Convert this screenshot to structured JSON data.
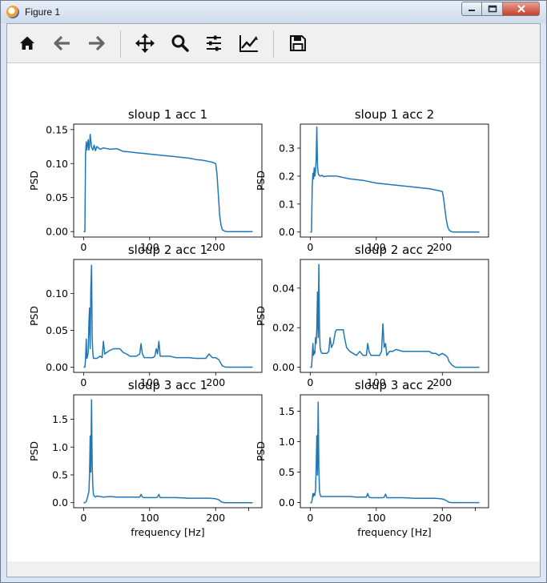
{
  "window": {
    "title": "Figure 1"
  },
  "toolbar": {
    "buttons": [
      {
        "name": "home-button",
        "icon": "home-icon"
      },
      {
        "name": "back-button",
        "icon": "arrow-left-icon"
      },
      {
        "name": "forward-button",
        "icon": "arrow-right-icon"
      },
      {
        "name": "pan-button",
        "icon": "move-icon"
      },
      {
        "name": "zoom-button",
        "icon": "magnifier-icon"
      },
      {
        "name": "configure-subplots-button",
        "icon": "sliders-icon"
      },
      {
        "name": "edit-axis-button",
        "icon": "line-chart-icon"
      },
      {
        "name": "save-button",
        "icon": "floppy-disk-icon"
      }
    ]
  },
  "colors": {
    "series": "#1f77b4"
  },
  "chart_data": [
    {
      "type": "line",
      "title": "sloup 1 acc 1",
      "xlabel": "",
      "ylabel": "PSD",
      "xlim": [
        -15,
        270
      ],
      "ylim": [
        -0.008,
        0.158
      ],
      "xticks": [
        {
          "v": 0,
          "l": "0"
        },
        {
          "v": 100,
          "l": "100"
        },
        {
          "v": 200,
          "l": "200"
        }
      ],
      "yticks": [
        {
          "v": 0,
          "l": "0.00"
        },
        {
          "v": 0.05,
          "l": "0.05"
        },
        {
          "v": 0.1,
          "l": "0.10"
        },
        {
          "v": 0.15,
          "l": "0.15"
        }
      ],
      "x": [
        0,
        2,
        3,
        4,
        5,
        6,
        7,
        8,
        9,
        10,
        12,
        14,
        16,
        18,
        20,
        25,
        30,
        40,
        50,
        60,
        70,
        80,
        90,
        100,
        110,
        120,
        130,
        140,
        150,
        160,
        170,
        180,
        190,
        195,
        200,
        202,
        204,
        206,
        208,
        210,
        213,
        216,
        220,
        230,
        240,
        256
      ],
      "y": [
        0,
        0,
        0.113,
        0.132,
        0.12,
        0.128,
        0.135,
        0.12,
        0.126,
        0.143,
        0.124,
        0.12,
        0.127,
        0.119,
        0.125,
        0.121,
        0.123,
        0.121,
        0.122,
        0.118,
        0.117,
        0.116,
        0.115,
        0.114,
        0.113,
        0.112,
        0.111,
        0.11,
        0.109,
        0.108,
        0.106,
        0.105,
        0.103,
        0.102,
        0.1,
        0.085,
        0.055,
        0.025,
        0.01,
        0.003,
        0.001,
        0,
        0,
        0,
        0,
        0
      ]
    },
    {
      "type": "line",
      "title": "sloup 1 acc 2",
      "xlabel": "",
      "ylabel": "PSD",
      "xlim": [
        -15,
        270
      ],
      "ylim": [
        -0.018,
        0.386
      ],
      "xticks": [
        {
          "v": 0,
          "l": "0"
        },
        {
          "v": 100,
          "l": "100"
        },
        {
          "v": 200,
          "l": "200"
        }
      ],
      "yticks": [
        {
          "v": 0,
          "l": "0.0"
        },
        {
          "v": 0.1,
          "l": "0.1"
        },
        {
          "v": 0.2,
          "l": "0.2"
        },
        {
          "v": 0.3,
          "l": "0.3"
        }
      ],
      "x": [
        0,
        2,
        3,
        4,
        5,
        6,
        7,
        8,
        9,
        10,
        11,
        12,
        13,
        15,
        18,
        20,
        25,
        30,
        40,
        50,
        60,
        80,
        100,
        120,
        140,
        160,
        180,
        195,
        200,
        202,
        204,
        206,
        208,
        210,
        213,
        216,
        220,
        230,
        240,
        256
      ],
      "y": [
        0,
        0,
        0.16,
        0.21,
        0.19,
        0.23,
        0.2,
        0.22,
        0.26,
        0.375,
        0.24,
        0.21,
        0.205,
        0.2,
        0.203,
        0.198,
        0.2,
        0.2,
        0.2,
        0.195,
        0.19,
        0.185,
        0.175,
        0.17,
        0.165,
        0.16,
        0.155,
        0.148,
        0.145,
        0.12,
        0.08,
        0.045,
        0.02,
        0.008,
        0.002,
        0,
        0,
        0,
        0,
        0
      ]
    },
    {
      "type": "line",
      "title": "sloup 2 acc 1",
      "xlabel": "",
      "ylabel": "PSD",
      "xlim": [
        -15,
        270
      ],
      "ylim": [
        -0.007,
        0.146
      ],
      "xticks": [
        {
          "v": 0,
          "l": "0"
        },
        {
          "v": 100,
          "l": "100"
        },
        {
          "v": 200,
          "l": "200"
        }
      ],
      "yticks": [
        {
          "v": 0,
          "l": "0.00"
        },
        {
          "v": 0.05,
          "l": "0.05"
        },
        {
          "v": 0.1,
          "l": "0.10"
        }
      ],
      "x": [
        0,
        2,
        3,
        4,
        5,
        6,
        7,
        8,
        9,
        10,
        11,
        12,
        13,
        14,
        15,
        17,
        20,
        25,
        28,
        30,
        32,
        35,
        40,
        45,
        50,
        55,
        60,
        65,
        70,
        75,
        80,
        85,
        87,
        89,
        92,
        95,
        100,
        105,
        108,
        110,
        112,
        114,
        116,
        120,
        130,
        140,
        150,
        160,
        170,
        180,
        185,
        190,
        195,
        200,
        205,
        208,
        210,
        215,
        220,
        230,
        240,
        256
      ],
      "y": [
        0,
        0,
        0.01,
        0.038,
        0.012,
        0.015,
        0.02,
        0.06,
        0.08,
        0.025,
        0.105,
        0.138,
        0.04,
        0.02,
        0.012,
        0.012,
        0.012,
        0.015,
        0.013,
        0.035,
        0.018,
        0.02,
        0.023,
        0.025,
        0.025,
        0.025,
        0.02,
        0.018,
        0.015,
        0.015,
        0.015,
        0.018,
        0.032,
        0.018,
        0.013,
        0.013,
        0.013,
        0.013,
        0.015,
        0.025,
        0.018,
        0.035,
        0.015,
        0.015,
        0.015,
        0.013,
        0.013,
        0.013,
        0.012,
        0.012,
        0.012,
        0.018,
        0.013,
        0.013,
        0.01,
        0.005,
        0.002,
        0,
        0,
        0,
        0,
        0
      ]
    },
    {
      "type": "line",
      "title": "sloup 2 acc 2",
      "xlabel": "",
      "ylabel": "PSD",
      "xlim": [
        -15,
        270
      ],
      "ylim": [
        -0.0026,
        0.0545
      ],
      "xticks": [
        {
          "v": 0,
          "l": "0"
        },
        {
          "v": 100,
          "l": "100"
        },
        {
          "v": 200,
          "l": "200"
        }
      ],
      "yticks": [
        {
          "v": 0,
          "l": "0.00"
        },
        {
          "v": 0.02,
          "l": "0.02"
        },
        {
          "v": 0.04,
          "l": "0.04"
        }
      ],
      "x": [
        0,
        2,
        3,
        4,
        5,
        6,
        7,
        8,
        9,
        10,
        11,
        12,
        13,
        14,
        15,
        16,
        18,
        20,
        25,
        28,
        30,
        32,
        35,
        38,
        40,
        42,
        45,
        50,
        52,
        55,
        60,
        65,
        70,
        75,
        80,
        85,
        87,
        89,
        92,
        95,
        100,
        105,
        108,
        110,
        112,
        114,
        116,
        120,
        125,
        130,
        140,
        150,
        160,
        170,
        180,
        185,
        190,
        195,
        200,
        205,
        208,
        210,
        215,
        220,
        230,
        240,
        256
      ],
      "y": [
        0,
        0,
        0.005,
        0.012,
        0.006,
        0.008,
        0.007,
        0.015,
        0.012,
        0.02,
        0.038,
        0.015,
        0.052,
        0.02,
        0.01,
        0.008,
        0.007,
        0.007,
        0.007,
        0.008,
        0.015,
        0.01,
        0.012,
        0.018,
        0.019,
        0.019,
        0.019,
        0.019,
        0.015,
        0.01,
        0.008,
        0.007,
        0.006,
        0.008,
        0.006,
        0.006,
        0.012,
        0.008,
        0.006,
        0.006,
        0.006,
        0.006,
        0.008,
        0.022,
        0.01,
        0.012,
        0.006,
        0.008,
        0.008,
        0.009,
        0.008,
        0.008,
        0.008,
        0.008,
        0.008,
        0.007,
        0.007,
        0.006,
        0.007,
        0.006,
        0.005,
        0.003,
        0.001,
        0,
        0,
        0,
        0
      ]
    },
    {
      "type": "line",
      "title": "sloup 3 acc 1",
      "xlabel": "frequency [Hz]",
      "ylabel": "PSD",
      "xlim": [
        -15,
        270
      ],
      "ylim": [
        -0.091,
        1.94
      ],
      "xticks": [
        {
          "v": 0,
          "l": "0"
        },
        {
          "v": 100,
          "l": "100"
        },
        {
          "v": 200,
          "l": "200"
        },
        {
          "v": 250,
          "l": ""
        }
      ],
      "yticks": [
        {
          "v": 0,
          "l": "0.0"
        },
        {
          "v": 0.5,
          "l": "0.5"
        },
        {
          "v": 1.0,
          "l": "1.0"
        },
        {
          "v": 1.5,
          "l": "1.5"
        }
      ],
      "x": [
        0,
        2,
        4,
        6,
        8,
        9,
        10,
        11,
        12,
        13,
        14,
        15,
        16,
        18,
        20,
        30,
        40,
        50,
        60,
        70,
        80,
        85,
        87,
        89,
        92,
        100,
        110,
        112,
        114,
        116,
        120,
        140,
        160,
        180,
        190,
        200,
        205,
        208,
        210,
        215,
        220,
        230,
        240,
        256
      ],
      "y": [
        0,
        0,
        0.02,
        0.1,
        0.2,
        0.5,
        1.2,
        0.55,
        1.85,
        0.7,
        0.3,
        0.15,
        0.12,
        0.1,
        0.12,
        0.1,
        0.11,
        0.1,
        0.1,
        0.1,
        0.1,
        0.1,
        0.15,
        0.1,
        0.09,
        0.09,
        0.09,
        0.1,
        0.15,
        0.09,
        0.09,
        0.09,
        0.08,
        0.08,
        0.08,
        0.07,
        0.05,
        0.02,
        0.005,
        0,
        0,
        0,
        0,
        0
      ]
    },
    {
      "type": "line",
      "title": "sloup 3 acc 2",
      "xlabel": "frequency [Hz]",
      "ylabel": "PSD",
      "xlim": [
        -15,
        270
      ],
      "ylim": [
        -0.084,
        1.77
      ],
      "xticks": [
        {
          "v": 0,
          "l": "0"
        },
        {
          "v": 100,
          "l": "100"
        },
        {
          "v": 200,
          "l": "200"
        },
        {
          "v": 250,
          "l": ""
        }
      ],
      "yticks": [
        {
          "v": 0,
          "l": "0.0"
        },
        {
          "v": 0.5,
          "l": "0.5"
        },
        {
          "v": 1.0,
          "l": "1.0"
        },
        {
          "v": 1.5,
          "l": "1.5"
        }
      ],
      "x": [
        0,
        2,
        3,
        4,
        5,
        6,
        7,
        8,
        9,
        10,
        11,
        12,
        13,
        14,
        15,
        16,
        18,
        20,
        30,
        40,
        50,
        60,
        70,
        80,
        85,
        87,
        89,
        92,
        100,
        110,
        112,
        114,
        116,
        120,
        140,
        160,
        180,
        190,
        200,
        205,
        208,
        210,
        215,
        220,
        230,
        240,
        256
      ],
      "y": [
        0,
        0,
        0.05,
        0.15,
        0.1,
        0.15,
        0.12,
        0.2,
        0.6,
        1.1,
        0.45,
        1.65,
        0.6,
        0.2,
        0.13,
        0.1,
        0.1,
        0.1,
        0.1,
        0.1,
        0.1,
        0.1,
        0.09,
        0.09,
        0.09,
        0.15,
        0.09,
        0.08,
        0.08,
        0.08,
        0.09,
        0.14,
        0.08,
        0.08,
        0.08,
        0.07,
        0.07,
        0.07,
        0.06,
        0.04,
        0.02,
        0.005,
        0,
        0,
        0,
        0,
        0
      ]
    }
  ]
}
